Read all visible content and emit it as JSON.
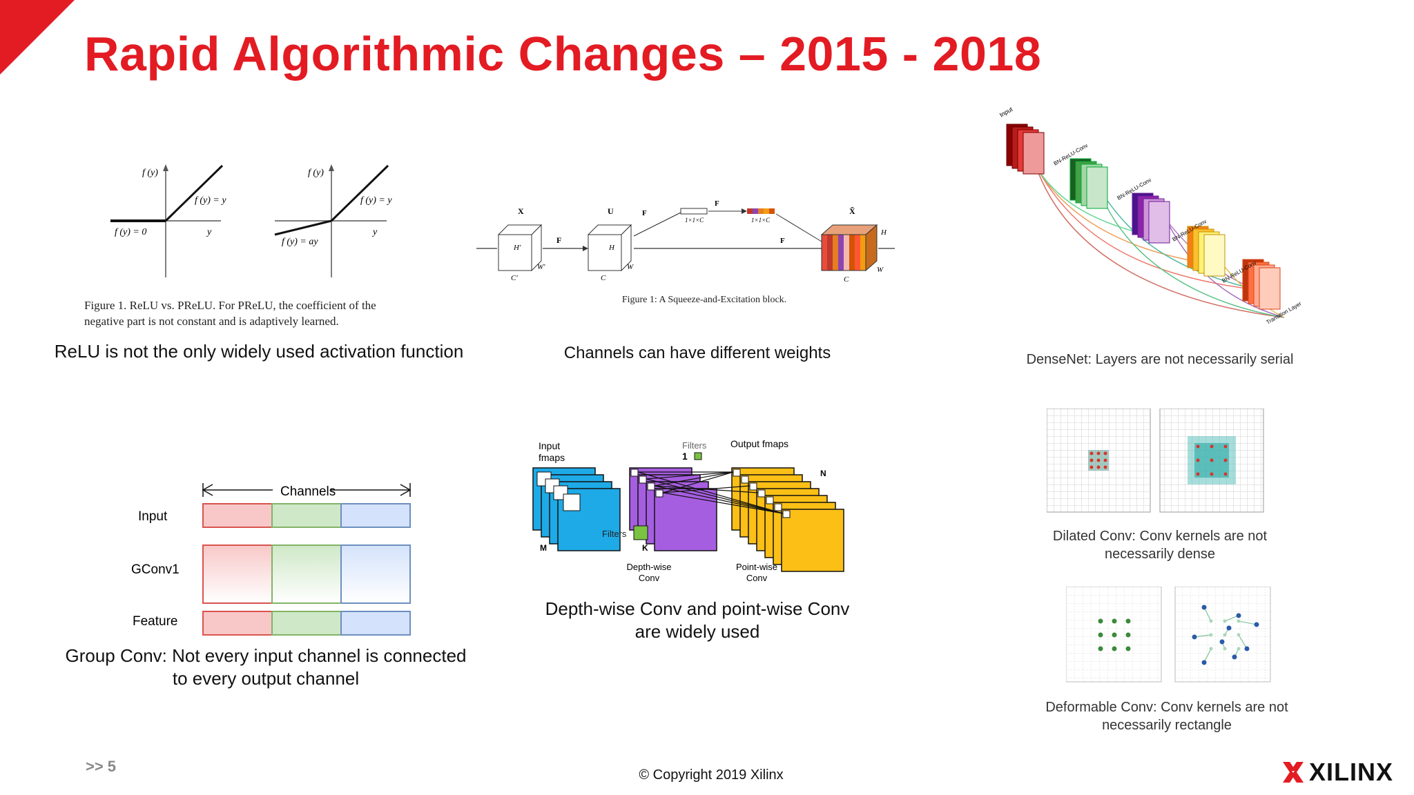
{
  "header": {
    "title": "Rapid Algorithmic Changes – 2015 - 2018"
  },
  "colors": {
    "brand_red": "#e31b23",
    "text": "#111111"
  },
  "relu": {
    "fig_caption_line1": "Figure 1. ReLU vs.  PReLU. For PReLU, the coefficient of the",
    "fig_caption_line2": "negative part is not constant and is adaptively learned.",
    "caption": "ReLU is not the only widely used activation function",
    "left": {
      "fy": "f (y)",
      "pos": "f (y) = y",
      "neg": "f (y) = 0",
      "y": "y"
    },
    "right": {
      "fy": "f (y)",
      "pos": "f (y) = y",
      "neg": "f (y) = ay",
      "y": "y"
    }
  },
  "se": {
    "fig_caption": "Figure 1: A Squeeze-and-Excitation block.",
    "caption": "Channels can have different weights",
    "labels": {
      "x": "X",
      "u": "U",
      "xt": "X̃",
      "ftr": "F",
      "fsq": "F",
      "fex": "F",
      "fscale": "F",
      "h1": "H'",
      "w1": "W'",
      "c1": "C'",
      "h": "H",
      "w": "W",
      "c": "C",
      "one_c": "1×1×C"
    }
  },
  "densenet": {
    "caption": "DenseNet: Layers are not necessarily serial",
    "labels": [
      "Input",
      "BN-ReLU-Conv",
      "BN-ReLU-Conv",
      "BN-ReLU-Conv",
      "BN-ReLU-Conv",
      "Transition Layer"
    ]
  },
  "groupconv": {
    "channels_label": "Channels",
    "rows": [
      "Input",
      "GConv1",
      "Feature"
    ],
    "caption_line1": "Group Conv: Not every input channel is connected",
    "caption_line2": "to every output channel"
  },
  "depthwise": {
    "labels": {
      "input_fmaps": "Input\nfmaps",
      "filters_top": "Filters",
      "one": "1",
      "output_fmaps": "Output fmaps",
      "n": "N",
      "m": "M",
      "filters_mid": "Filters",
      "k": "K",
      "depthwise": "Depth-wise\nConv",
      "pointwise": "Point-wise\nConv"
    },
    "caption_line1": "Depth-wise Conv and point-wise Conv",
    "caption_line2": "are widely used"
  },
  "dilated": {
    "caption_line1": "Dilated Conv: Conv kernels are not",
    "caption_line2": "necessarily dense"
  },
  "deformable": {
    "caption_line1": "Deformable Conv: Conv kernels are not",
    "caption_line2": "necessarily rectangle"
  },
  "footer": {
    "page": ">> 5",
    "copyright": "© Copyright 2019 Xilinx",
    "logo_text": "XILINX"
  }
}
